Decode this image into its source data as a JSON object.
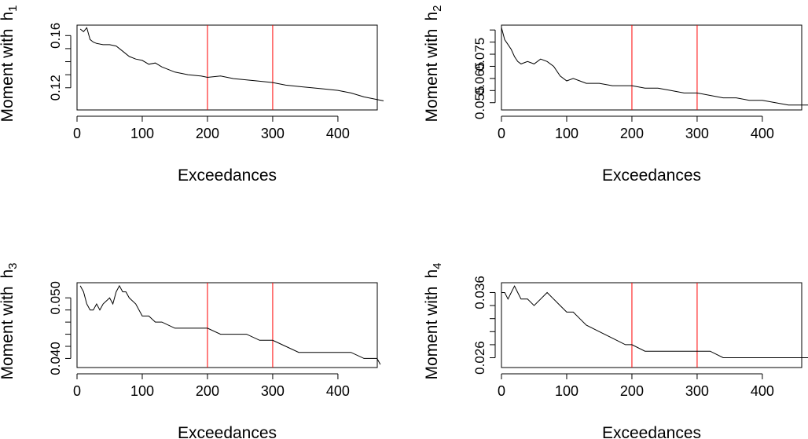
{
  "chart_data": [
    {
      "type": "line",
      "ylabel_text": "Moment with",
      "ylabel_symbol": "h",
      "ylabel_subscript": "1",
      "xlabel": "Exceedances",
      "xlim": [
        0,
        470
      ],
      "ylim": [
        0.103,
        0.168
      ],
      "xticks": [
        0,
        100,
        200,
        300,
        400
      ],
      "yticks": [
        0.12,
        0.16
      ],
      "yticks_minor": [
        0.12,
        0.13,
        0.14,
        0.15,
        0.16
      ],
      "ytick_labels": [
        "0.12",
        "0.16"
      ],
      "vlines": [
        200,
        300
      ],
      "vline_color": "#ff0000",
      "x": [
        5,
        10,
        15,
        20,
        25,
        30,
        40,
        50,
        60,
        70,
        80,
        90,
        100,
        110,
        120,
        130,
        150,
        170,
        190,
        200,
        220,
        240,
        260,
        280,
        300,
        320,
        340,
        360,
        380,
        400,
        420,
        440,
        460,
        470
      ],
      "y": [
        0.165,
        0.163,
        0.166,
        0.157,
        0.155,
        0.154,
        0.153,
        0.153,
        0.152,
        0.148,
        0.144,
        0.142,
        0.141,
        0.138,
        0.139,
        0.136,
        0.132,
        0.13,
        0.129,
        0.128,
        0.129,
        0.127,
        0.126,
        0.125,
        0.124,
        0.122,
        0.121,
        0.12,
        0.119,
        0.118,
        0.116,
        0.113,
        0.111,
        0.11
      ]
    },
    {
      "type": "line",
      "ylabel_text": "Moment with",
      "ylabel_symbol": "h",
      "ylabel_subscript": "2",
      "xlabel": "Exceedances",
      "xlim": [
        0,
        470
      ],
      "ylim": [
        0.052,
        0.087
      ],
      "xticks": [
        0,
        100,
        200,
        300,
        400
      ],
      "yticks": [
        0.055,
        0.065,
        0.075
      ],
      "yticks_minor": [
        0.055,
        0.06,
        0.065,
        0.07,
        0.075,
        0.08,
        0.085
      ],
      "ytick_labels": [
        "0.055",
        "0.065",
        "0.075"
      ],
      "vlines": [
        200,
        300
      ],
      "vline_color": "#ff0000",
      "x": [
        0,
        5,
        10,
        15,
        20,
        25,
        30,
        40,
        50,
        60,
        70,
        80,
        90,
        100,
        110,
        120,
        130,
        150,
        170,
        190,
        200,
        220,
        240,
        260,
        280,
        300,
        320,
        340,
        360,
        380,
        400,
        420,
        440,
        460,
        470
      ],
      "y": [
        0.086,
        0.081,
        0.079,
        0.077,
        0.074,
        0.072,
        0.071,
        0.072,
        0.071,
        0.073,
        0.072,
        0.07,
        0.066,
        0.064,
        0.065,
        0.064,
        0.063,
        0.063,
        0.062,
        0.062,
        0.062,
        0.061,
        0.061,
        0.06,
        0.059,
        0.059,
        0.058,
        0.057,
        0.057,
        0.056,
        0.056,
        0.055,
        0.054,
        0.054,
        0.054
      ]
    },
    {
      "type": "line",
      "ylabel_text": "Moment with",
      "ylabel_symbol": "h",
      "ylabel_subscript": "3",
      "xlabel": "Exceedances",
      "xlim": [
        0,
        470
      ],
      "ylim": [
        0.0385,
        0.0525
      ],
      "xticks": [
        0,
        100,
        200,
        300,
        400
      ],
      "yticks": [
        0.04,
        0.05
      ],
      "yticks_minor": [
        0.04,
        0.042,
        0.044,
        0.046,
        0.048,
        0.05
      ],
      "ytick_labels": [
        "0.040",
        "0.050"
      ],
      "vlines": [
        200,
        300
      ],
      "vline_color": "#ff0000",
      "x": [
        5,
        10,
        15,
        20,
        25,
        30,
        35,
        40,
        50,
        55,
        60,
        65,
        70,
        75,
        80,
        90,
        100,
        110,
        120,
        130,
        150,
        170,
        190,
        200,
        220,
        240,
        260,
        280,
        300,
        320,
        340,
        360,
        380,
        400,
        420,
        440,
        460,
        465
      ],
      "y": [
        0.052,
        0.051,
        0.049,
        0.048,
        0.048,
        0.049,
        0.048,
        0.049,
        0.05,
        0.049,
        0.051,
        0.052,
        0.051,
        0.051,
        0.05,
        0.049,
        0.047,
        0.047,
        0.046,
        0.046,
        0.045,
        0.045,
        0.045,
        0.045,
        0.044,
        0.044,
        0.044,
        0.043,
        0.043,
        0.042,
        0.041,
        0.041,
        0.041,
        0.041,
        0.041,
        0.04,
        0.04,
        0.039
      ]
    },
    {
      "type": "line",
      "ylabel_text": "Moment with",
      "ylabel_symbol": "h",
      "ylabel_subscript": "4",
      "xlabel": "Exceedances",
      "xlim": [
        0,
        470
      ],
      "ylim": [
        0.0245,
        0.0375
      ],
      "xticks": [
        0,
        100,
        200,
        300,
        400
      ],
      "yticks": [
        0.026,
        0.036
      ],
      "yticks_minor": [
        0.026,
        0.028,
        0.03,
        0.032,
        0.034,
        0.036
      ],
      "ytick_labels": [
        "0.026",
        "0.036"
      ],
      "vlines": [
        200,
        300
      ],
      "vline_color": "#ff0000",
      "x": [
        0,
        5,
        10,
        15,
        20,
        25,
        30,
        40,
        50,
        60,
        70,
        80,
        90,
        100,
        110,
        120,
        130,
        150,
        170,
        190,
        200,
        220,
        240,
        260,
        280,
        300,
        320,
        340,
        360,
        380,
        400,
        420,
        440,
        460,
        470
      ],
      "y": [
        0.036,
        0.036,
        0.035,
        0.036,
        0.037,
        0.036,
        0.035,
        0.035,
        0.034,
        0.035,
        0.036,
        0.035,
        0.034,
        0.033,
        0.033,
        0.032,
        0.031,
        0.03,
        0.029,
        0.028,
        0.028,
        0.027,
        0.027,
        0.027,
        0.027,
        0.027,
        0.027,
        0.026,
        0.026,
        0.026,
        0.026,
        0.026,
        0.026,
        0.026,
        0.026
      ]
    }
  ]
}
